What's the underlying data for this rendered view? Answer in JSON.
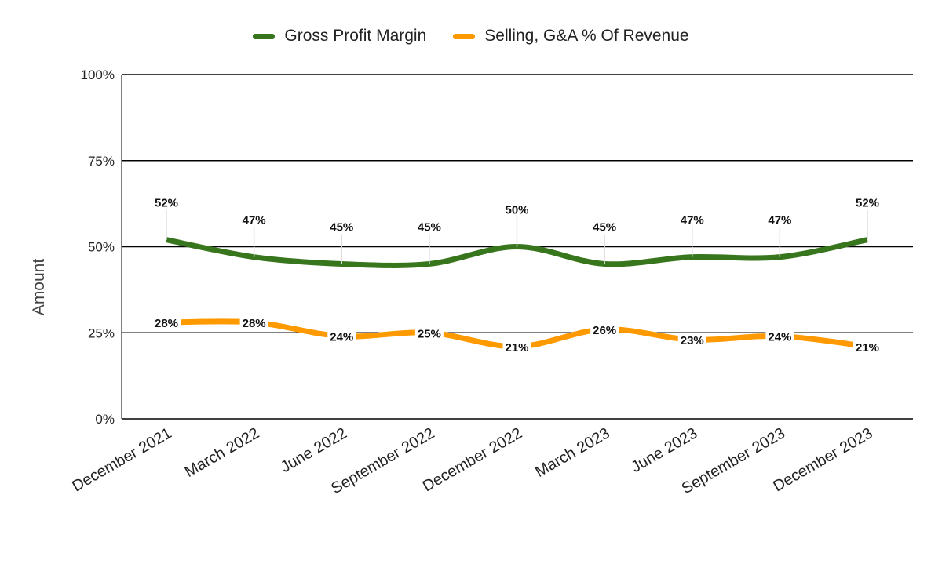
{
  "chart_data": {
    "type": "line",
    "title": "",
    "xlabel": "",
    "ylabel": "Amount",
    "ylim": [
      0,
      100
    ],
    "yticks": [
      "0%",
      "25%",
      "50%",
      "75%",
      "100%"
    ],
    "ytick_values": [
      0,
      25,
      50,
      75,
      100
    ],
    "grid": true,
    "legend_position": "top",
    "categories": [
      "December 2021",
      "March 2022",
      "June 2022",
      "September 2022",
      "December 2022",
      "March 2023",
      "June 2023",
      "September 2023",
      "December 2023"
    ],
    "series": [
      {
        "name": "Gross Profit Margin",
        "color": "#38761d",
        "values": [
          52,
          47,
          45,
          45,
          50,
          45,
          47,
          47,
          52
        ],
        "labels": [
          "52%",
          "47%",
          "45%",
          "45%",
          "50%",
          "45%",
          "47%",
          "47%",
          "52%"
        ]
      },
      {
        "name": "Selling, G&A % Of Revenue",
        "color": "#ff9900",
        "values": [
          28,
          28,
          24,
          25,
          21,
          26,
          23,
          24,
          21
        ],
        "labels": [
          "28%",
          "28%",
          "24%",
          "25%",
          "21%",
          "26%",
          "23%",
          "24%",
          "21%"
        ]
      }
    ]
  }
}
